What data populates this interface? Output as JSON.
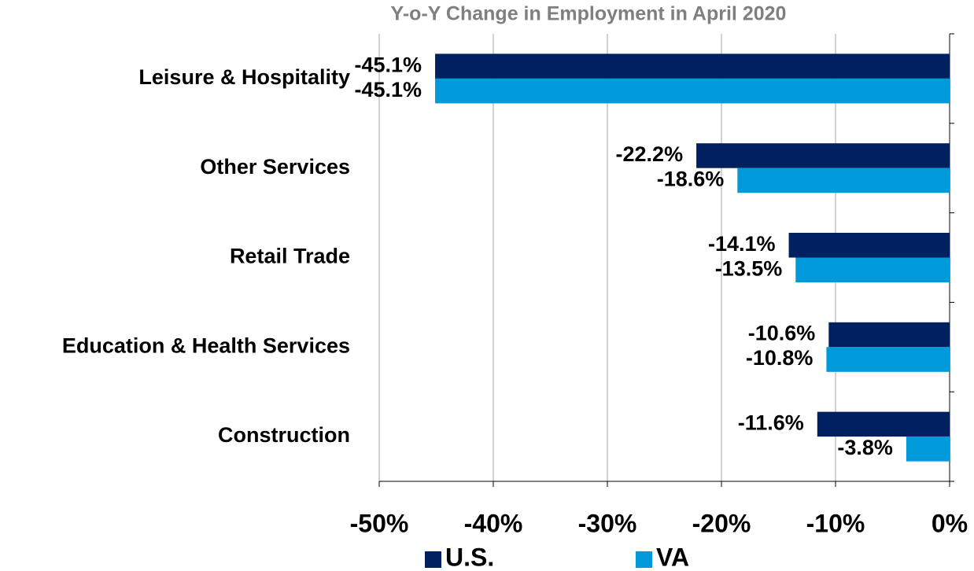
{
  "chart_data": {
    "type": "bar",
    "orientation": "horizontal",
    "title": "Y-o-Y Change in Employment in April 2020",
    "categories": [
      "Leisure & Hospitality",
      "Other Services",
      "Retail Trade",
      "Education & Health Services",
      "Construction"
    ],
    "series": [
      {
        "name": "U.S.",
        "color": "#002060",
        "values": [
          -45.1,
          -22.2,
          -14.1,
          -10.6,
          -11.6
        ],
        "value_labels": [
          "-45.1%",
          "-22.2%",
          "-14.1%",
          "-10.6%",
          "-11.6%"
        ]
      },
      {
        "name": "VA",
        "color": "#0099DA",
        "values": [
          -45.1,
          -18.6,
          -13.5,
          -10.8,
          -3.8
        ],
        "value_labels": [
          "-45.1%",
          "-18.6%",
          "-13.5%",
          "-10.8%",
          "-3.8%"
        ]
      }
    ],
    "xlim": [
      -50,
      0
    ],
    "xticks": [
      {
        "value": -50,
        "label": "-50%"
      },
      {
        "value": -40,
        "label": "-40%"
      },
      {
        "value": -30,
        "label": "-30%"
      },
      {
        "value": -20,
        "label": "-20%"
      },
      {
        "value": -10,
        "label": "-10%"
      },
      {
        "value": 0,
        "label": "0%"
      }
    ],
    "grid": true,
    "legend": "bottom"
  }
}
